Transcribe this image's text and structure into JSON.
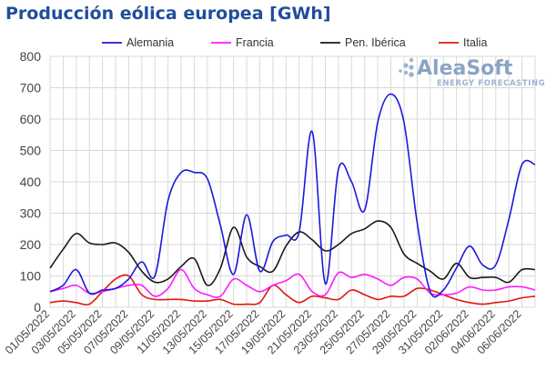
{
  "chart_data": {
    "type": "line",
    "title": "Producción eólica europea [GWh]",
    "ylim": [
      0,
      800
    ],
    "yticks": [
      0,
      100,
      200,
      300,
      400,
      500,
      600,
      700,
      800
    ],
    "grid": true,
    "legend_position": "top",
    "x": [
      "01/05/2022",
      "02/05/2022",
      "03/05/2022",
      "04/05/2022",
      "05/05/2022",
      "06/05/2022",
      "07/05/2022",
      "08/05/2022",
      "09/05/2022",
      "10/05/2022",
      "11/05/2022",
      "12/05/2022",
      "13/05/2022",
      "14/05/2022",
      "15/05/2022",
      "16/05/2022",
      "17/05/2022",
      "18/05/2022",
      "19/05/2022",
      "20/05/2022",
      "21/05/2022",
      "22/05/2022",
      "23/05/2022",
      "24/05/2022",
      "25/05/2022",
      "26/05/2022",
      "27/05/2022",
      "28/05/2022",
      "29/05/2022",
      "30/05/2022",
      "31/05/2022",
      "01/06/2022",
      "02/06/2022",
      "03/06/2022",
      "04/06/2022",
      "05/06/2022",
      "06/06/2022",
      "07/06/2022"
    ],
    "xtick_labels": [
      "01/05/2022",
      "03/05/2022",
      "05/05/2022",
      "07/05/2022",
      "09/05/2022",
      "11/05/2022",
      "13/05/2022",
      "15/05/2022",
      "17/05/2022",
      "19/05/2022",
      "21/05/2022",
      "23/05/2022",
      "25/05/2022",
      "27/05/2022",
      "29/05/2022",
      "31/05/2022",
      "02/06/2022",
      "04/06/2022",
      "06/06/2022"
    ],
    "series": [
      {
        "name": "Alemania",
        "color": "#1a1adb",
        "values": [
          50,
          70,
          120,
          45,
          55,
          60,
          90,
          145,
          100,
          340,
          430,
          430,
          410,
          260,
          105,
          295,
          115,
          210,
          230,
          240,
          560,
          75,
          440,
          400,
          310,
          590,
          680,
          590,
          270,
          50,
          55,
          125,
          195,
          135,
          135,
          280,
          455,
          455
        ]
      },
      {
        "name": "Francia",
        "color": "#ff1aff",
        "values": [
          50,
          60,
          70,
          45,
          50,
          60,
          70,
          70,
          35,
          60,
          120,
          60,
          40,
          35,
          90,
          70,
          50,
          70,
          85,
          105,
          50,
          40,
          110,
          95,
          105,
          90,
          70,
          95,
          90,
          45,
          40,
          45,
          65,
          55,
          55,
          65,
          65,
          55
        ]
      },
      {
        "name": "Pen. Ibérica",
        "color": "#1a1a1a",
        "values": [
          125,
          185,
          235,
          205,
          200,
          205,
          175,
          115,
          80,
          90,
          130,
          155,
          70,
          125,
          255,
          160,
          130,
          115,
          195,
          240,
          215,
          180,
          200,
          235,
          250,
          275,
          255,
          170,
          140,
          115,
          90,
          140,
          95,
          95,
          95,
          80,
          120,
          120
        ]
      },
      {
        "name": "Italia",
        "color": "#e3160f",
        "values": [
          15,
          20,
          15,
          10,
          50,
          90,
          100,
          40,
          25,
          25,
          25,
          20,
          20,
          25,
          10,
          10,
          15,
          70,
          40,
          15,
          35,
          30,
          25,
          55,
          40,
          25,
          35,
          35,
          60,
          55,
          40,
          25,
          15,
          10,
          15,
          20,
          30,
          35
        ]
      }
    ]
  },
  "watermark": {
    "name": "AleaSoft",
    "tagline": "ENERGY FORECASTING"
  }
}
